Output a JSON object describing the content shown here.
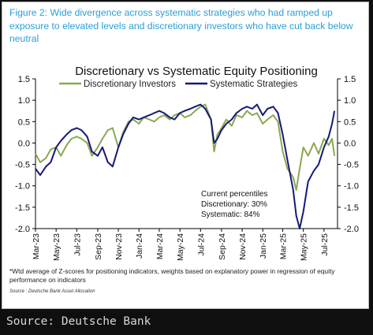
{
  "figure_title": "Figure 2: Wide divergence across systematic strategies who had ramped up exposure to elevated levels and discretionary investors who have cut back below neutral",
  "footnote": "*Wtd average of Z-scores for positioning indicators, weights based on explanatory power in regression of equity performance on indicators",
  "source_small": "Source : Deutsche Bank Asset Allocation",
  "source_line": "Source: Deutsche Bank",
  "colors": {
    "title": "#2a9fd6",
    "discretionary": "#8aa852",
    "systematic": "#141a78",
    "axis": "#000000"
  },
  "chart_data": {
    "type": "line",
    "title": "Discretionary  vs Systematic Equity Positioning",
    "ylim": [
      -2.0,
      1.5
    ],
    "yticks": [
      "1.5",
      "1.0",
      "0.5",
      "0.0",
      "-0.5",
      "-1.0",
      "-1.5",
      "-2.0"
    ],
    "yticks_right": [
      "1.5",
      "1.0",
      "0.5",
      "0.0",
      "-0.5",
      "-1.0",
      "-1.5",
      "-2.0"
    ],
    "xlim": [
      "2023-03",
      "2025-08"
    ],
    "xtick_labels": [
      "Mar-23",
      "May-23",
      "Jul-23",
      "Sep-23",
      "Nov-23",
      "Jan-24",
      "Mar-24",
      "May-24",
      "Jul-24",
      "Sep-24",
      "Nov-24",
      "Jan-25",
      "Mar-25",
      "May-25",
      "Jul-25"
    ],
    "legend_position": "top",
    "annotation": [
      "Current percentiles",
      "Discretionary: 30%",
      "Systematic: 84%"
    ],
    "series": [
      {
        "name": "Discretionary Investors",
        "x": [
          "2023-03-01",
          "2023-03-15",
          "2023-04-01",
          "2023-04-15",
          "2023-05-01",
          "2023-05-15",
          "2023-06-01",
          "2023-06-15",
          "2023-07-01",
          "2023-07-15",
          "2023-08-01",
          "2023-08-15",
          "2023-09-01",
          "2023-09-15",
          "2023-10-01",
          "2023-10-15",
          "2023-11-01",
          "2023-11-15",
          "2023-12-01",
          "2023-12-15",
          "2024-01-01",
          "2024-01-15",
          "2024-02-01",
          "2024-02-15",
          "2024-03-01",
          "2024-03-15",
          "2024-04-01",
          "2024-04-15",
          "2024-05-01",
          "2024-05-15",
          "2024-06-01",
          "2024-06-15",
          "2024-07-01",
          "2024-07-15",
          "2024-08-01",
          "2024-08-10",
          "2024-08-20",
          "2024-09-01",
          "2024-09-15",
          "2024-10-01",
          "2024-10-15",
          "2024-11-01",
          "2024-11-15",
          "2024-12-01",
          "2024-12-15",
          "2025-01-01",
          "2025-01-15",
          "2025-02-01",
          "2025-02-15",
          "2025-03-01",
          "2025-03-15",
          "2025-04-01",
          "2025-04-10",
          "2025-04-20",
          "2025-05-01",
          "2025-05-15",
          "2025-06-01",
          "2025-06-15",
          "2025-07-01",
          "2025-07-15",
          "2025-07-25",
          "2025-08-01"
        ],
        "y": [
          -0.25,
          -0.45,
          -0.35,
          -0.15,
          -0.1,
          -0.3,
          -0.05,
          0.1,
          0.15,
          0.1,
          0.0,
          -0.3,
          -0.1,
          0.1,
          0.3,
          0.35,
          -0.1,
          0.25,
          0.5,
          0.55,
          0.45,
          0.6,
          0.55,
          0.5,
          0.6,
          0.65,
          0.55,
          0.65,
          0.7,
          0.6,
          0.65,
          0.75,
          0.85,
          0.9,
          0.55,
          -0.2,
          0.2,
          0.35,
          0.55,
          0.4,
          0.65,
          0.6,
          0.75,
          0.65,
          0.7,
          0.45,
          0.55,
          0.65,
          0.5,
          -0.2,
          -0.6,
          -0.8,
          -1.1,
          -0.6,
          -0.1,
          -0.3,
          0.0,
          -0.25,
          0.1,
          -0.05,
          0.1,
          -0.3
        ]
      },
      {
        "name": "Systematic Strategies",
        "x": [
          "2023-03-01",
          "2023-03-15",
          "2023-04-01",
          "2023-04-15",
          "2023-05-01",
          "2023-05-15",
          "2023-06-01",
          "2023-06-15",
          "2023-07-01",
          "2023-07-15",
          "2023-08-01",
          "2023-08-15",
          "2023-09-01",
          "2023-09-15",
          "2023-10-01",
          "2023-10-15",
          "2023-11-01",
          "2023-11-15",
          "2023-12-01",
          "2023-12-15",
          "2024-01-01",
          "2024-01-15",
          "2024-02-01",
          "2024-02-15",
          "2024-03-01",
          "2024-03-15",
          "2024-04-01",
          "2024-04-15",
          "2024-05-01",
          "2024-05-15",
          "2024-06-01",
          "2024-06-15",
          "2024-07-01",
          "2024-07-15",
          "2024-08-01",
          "2024-08-10",
          "2024-08-20",
          "2024-09-01",
          "2024-09-15",
          "2024-10-01",
          "2024-10-15",
          "2024-11-01",
          "2024-11-15",
          "2024-12-01",
          "2024-12-15",
          "2025-01-01",
          "2025-01-15",
          "2025-02-01",
          "2025-02-15",
          "2025-03-01",
          "2025-03-15",
          "2025-04-01",
          "2025-04-10",
          "2025-04-20",
          "2025-05-01",
          "2025-05-15",
          "2025-06-01",
          "2025-06-15",
          "2025-07-01",
          "2025-07-15",
          "2025-07-25",
          "2025-08-01"
        ],
        "y": [
          -0.6,
          -0.75,
          -0.55,
          -0.45,
          -0.1,
          0.05,
          0.2,
          0.3,
          0.35,
          0.3,
          0.15,
          -0.2,
          -0.3,
          -0.1,
          -0.45,
          -0.55,
          -0.1,
          0.2,
          0.45,
          0.6,
          0.55,
          0.6,
          0.65,
          0.7,
          0.75,
          0.7,
          0.6,
          0.55,
          0.7,
          0.75,
          0.8,
          0.85,
          0.9,
          0.8,
          0.55,
          0.0,
          0.1,
          0.3,
          0.45,
          0.55,
          0.7,
          0.8,
          0.85,
          0.8,
          0.9,
          0.65,
          0.8,
          0.85,
          0.7,
          0.2,
          -0.4,
          -1.1,
          -1.7,
          -2.0,
          -1.6,
          -0.9,
          -0.65,
          -0.5,
          -0.1,
          0.15,
          0.45,
          0.75
        ]
      }
    ]
  }
}
